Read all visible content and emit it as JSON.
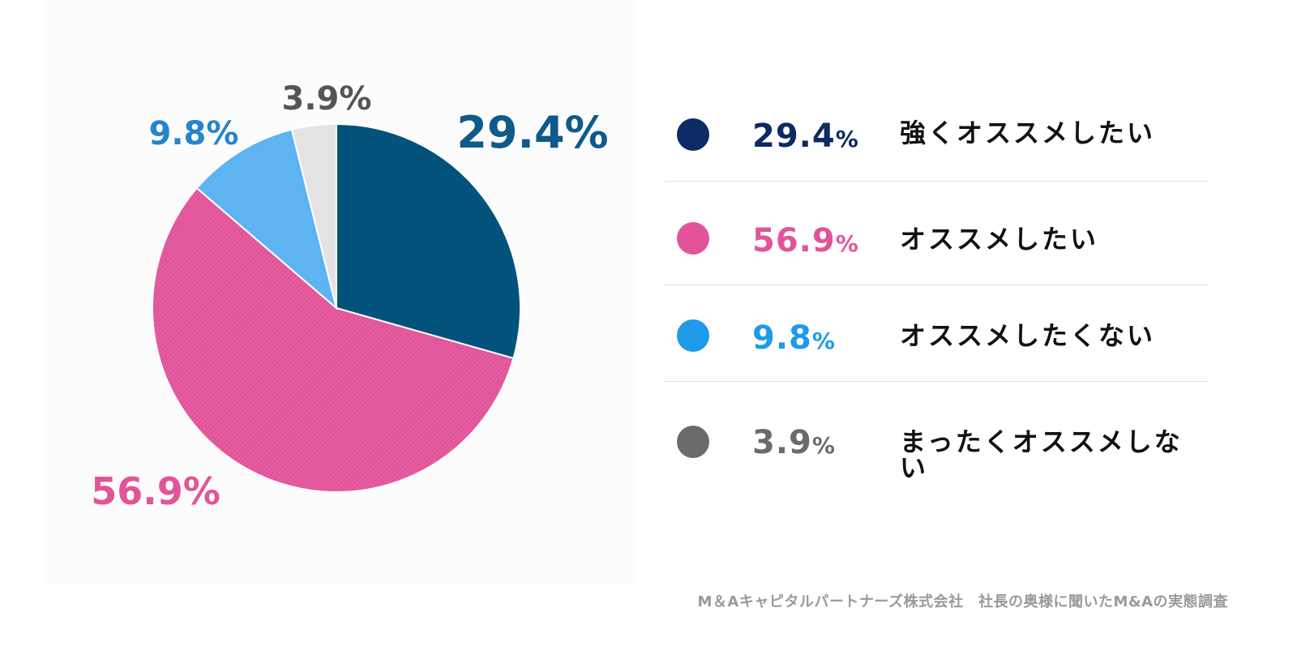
{
  "chart_data": {
    "type": "pie",
    "slices": [
      {
        "label": "強くオススメしたい",
        "value": 29.4,
        "value_text": "29.4",
        "unit": "%",
        "display": "29.4%",
        "slice_color": "#03527c",
        "legend_dot_color": "#0c2a64",
        "legend_value_color": "#0c2a64",
        "label_color": "#0e5a8a"
      },
      {
        "label": "オススメしたい",
        "value": 56.9,
        "value_text": "56.9",
        "unit": "%",
        "display": "56.9%",
        "slice_color": "#e2549a",
        "legend_dot_color": "#e2549a",
        "legend_value_color": "#e2549a",
        "label_color": "#e2549a"
      },
      {
        "label": "オススメしたくない",
        "value": 9.8,
        "value_text": "9.8",
        "unit": "%",
        "display": "9.8%",
        "slice_color": "#5db4f0",
        "legend_dot_color": "#1e9be8",
        "legend_value_color": "#1e9be8",
        "label_color": "#2585c9"
      },
      {
        "label": "まったくオススメしない",
        "value": 3.9,
        "value_text": "3.9",
        "unit": "%",
        "display": "3.9%",
        "slice_color": "#e3e3e3",
        "legend_dot_color": "#6b6b6b",
        "legend_value_color": "#6b6b6b",
        "label_color": "#555555"
      }
    ],
    "start_angle_deg": 0,
    "direction": "clockwise",
    "legend_placement": "right"
  },
  "source": "M＆Aキャピタルパートナーズ株式会社　社長の奥様に聞いたM&Aの実態調査"
}
